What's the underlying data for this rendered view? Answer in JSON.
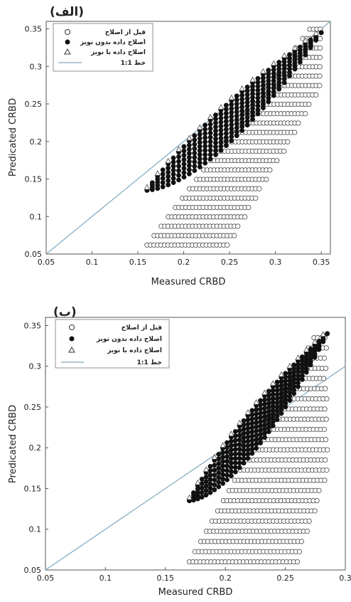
{
  "chart_data": [
    {
      "type": "scatter",
      "panel_label": "(الف)",
      "xlabel": "Measured CRBD",
      "ylabel": "Predicated CRBD",
      "xlim": [
        0.05,
        0.36
      ],
      "ylim": [
        0.05,
        0.36
      ],
      "xticks": [
        "0.05",
        "0.1",
        "0.15",
        "0.2",
        "0.25",
        "0.3",
        "0.35"
      ],
      "yticks": [
        "0.05",
        "0.1",
        "0.15",
        "0.2",
        "0.25",
        "0.3",
        "0.35"
      ],
      "grid": false,
      "legend_position": "top-left",
      "legend": [
        {
          "label": "قبل از اصلاح",
          "marker": "open-circle"
        },
        {
          "label": "اصلاح داده بدون نویز",
          "marker": "filled-circle"
        },
        {
          "label": "اصلاح داده با نویز",
          "marker": "open-triangle"
        },
        {
          "label": "خط 1:1",
          "marker": "line"
        }
      ],
      "reference_line": {
        "color": "#7fa8bf",
        "slope": 1,
        "intercept": 0
      },
      "generator": {
        "x_min": 0.16,
        "x_max": 0.35,
        "x_step": 0.0038,
        "y_min": 0.062,
        "y_max": 0.345,
        "y_band_step": 0.0125
      }
    },
    {
      "type": "scatter",
      "panel_label": "(ب)",
      "xlabel": "Measured CRBD",
      "ylabel": "Predicated CRBD",
      "xlim": [
        0.05,
        0.3
      ],
      "ylim": [
        0.05,
        0.36
      ],
      "xticks": [
        "0.05",
        "0.1",
        "0.15",
        "0.2",
        "0.25",
        "0.3"
      ],
      "yticks": [
        "0.05",
        "0.1",
        "0.15",
        "0.2",
        "0.25",
        "0.3",
        "0.35"
      ],
      "grid": false,
      "legend_position": "top-left",
      "legend": [
        {
          "label": "قبل از اصلاح",
          "marker": "open-circle"
        },
        {
          "label": "اصلاح داده بدون نویز",
          "marker": "filled-circle"
        },
        {
          "label": "اصلاح داده با نویز",
          "marker": "open-triangle"
        },
        {
          "label": "خط 1:1",
          "marker": "line"
        }
      ],
      "reference_line": {
        "color": "#7fa8bf",
        "slope": 1,
        "intercept": 0
      },
      "generator": {
        "x_min": 0.17,
        "x_max": 0.285,
        "x_step": 0.003,
        "y_min": 0.06,
        "y_max": 0.34,
        "y_band_step": 0.0125
      }
    }
  ]
}
